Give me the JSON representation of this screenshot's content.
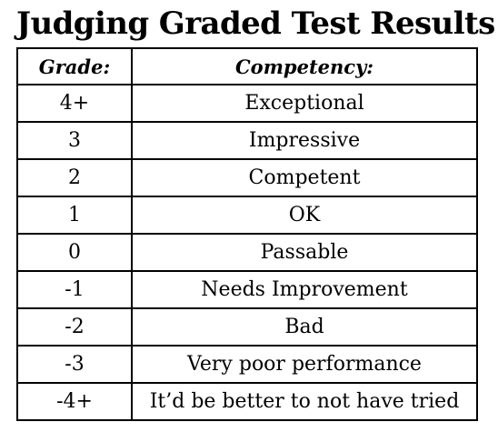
{
  "title": "Judging Graded Test Results",
  "table": {
    "headers": {
      "grade": "Grade:",
      "competency": "Competency:"
    },
    "rows": [
      {
        "grade": "4+",
        "competency": "Exceptional"
      },
      {
        "grade": "3",
        "competency": "Impressive"
      },
      {
        "grade": "2",
        "competency": "Competent"
      },
      {
        "grade": "1",
        "competency": "OK"
      },
      {
        "grade": "0",
        "competency": "Passable"
      },
      {
        "grade": "-1",
        "competency": "Needs Improvement"
      },
      {
        "grade": "-2",
        "competency": "Bad"
      },
      {
        "grade": "-3",
        "competency": "Very poor performance"
      },
      {
        "grade": "-4+",
        "competency": "It’d be better to not have tried"
      }
    ]
  }
}
